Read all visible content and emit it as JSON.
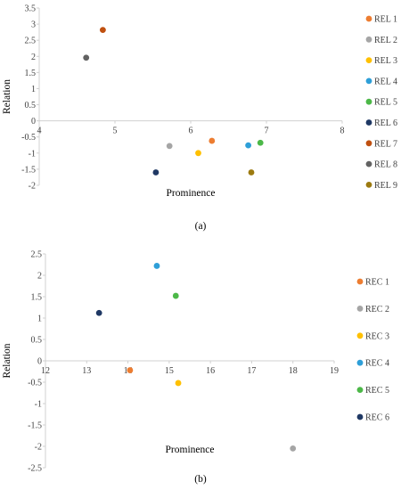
{
  "chart_data": [
    {
      "type": "scatter",
      "caption": "(a)",
      "xlabel": "Prominence",
      "ylabel": "Relation",
      "xlim": [
        4,
        8
      ],
      "ylim": [
        -2,
        3.5
      ],
      "xticks": [
        4,
        5,
        6,
        7,
        8
      ],
      "yticks": [
        -2,
        -1.5,
        -1,
        -0.5,
        0,
        0.5,
        1,
        1.5,
        2,
        2.5,
        3,
        3.5
      ],
      "xtick_labels": [
        "4",
        "5",
        "6",
        "7",
        "8"
      ],
      "ytick_labels": [
        "-2",
        "-1.5",
        "-1",
        "-0.5",
        "0",
        "0.5",
        "1",
        "1.5",
        "2",
        "2.5",
        "3",
        "3.5"
      ],
      "grid": false,
      "legend_position": "right",
      "series": [
        {
          "name": "REL 1",
          "color": "#ED7D31",
          "x": 6.28,
          "y": -0.62
        },
        {
          "name": "REL 2",
          "color": "#A5A5A5",
          "x": 5.72,
          "y": -0.78
        },
        {
          "name": "REL 3",
          "color": "#FFC000",
          "x": 6.1,
          "y": -1.0
        },
        {
          "name": "REL 4",
          "color": "#2E9FD8",
          "x": 6.76,
          "y": -0.76
        },
        {
          "name": "REL 5",
          "color": "#4CB848",
          "x": 6.92,
          "y": -0.68
        },
        {
          "name": "REL 6",
          "color": "#1F3864",
          "x": 5.54,
          "y": -1.6
        },
        {
          "name": "REL 7",
          "color": "#C05010",
          "x": 4.84,
          "y": 2.82
        },
        {
          "name": "REL 8",
          "color": "#626262",
          "x": 4.62,
          "y": 1.96
        },
        {
          "name": "REL 9",
          "color": "#9C7A10",
          "x": 6.8,
          "y": -1.6
        }
      ]
    },
    {
      "type": "scatter",
      "caption": "(b)",
      "xlabel": "Prominence",
      "ylabel": "Relation",
      "xlim": [
        12,
        19
      ],
      "ylim": [
        -2.5,
        2.5
      ],
      "xticks": [
        12,
        13,
        14,
        15,
        16,
        17,
        18,
        19
      ],
      "yticks": [
        -2.5,
        -2,
        -1.5,
        -1,
        -0.5,
        0,
        0.5,
        1,
        1.5,
        2,
        2.5
      ],
      "xtick_labels": [
        "12",
        "13",
        "14",
        "15",
        "16",
        "17",
        "18",
        "19"
      ],
      "ytick_labels": [
        "-2.5",
        "-2",
        "-1.5",
        "-1",
        "-0.5",
        "0",
        "0.5",
        "1",
        "1.5",
        "2",
        "2.5"
      ],
      "grid": false,
      "legend_position": "right",
      "series": [
        {
          "name": "REC 1",
          "color": "#ED7D31",
          "x": 14.05,
          "y": -0.22
        },
        {
          "name": "REC 2",
          "color": "#A5A5A5",
          "x": 18.0,
          "y": -2.05
        },
        {
          "name": "REC 3",
          "color": "#FFC000",
          "x": 15.22,
          "y": -0.52
        },
        {
          "name": "REC 4",
          "color": "#2E9FD8",
          "x": 14.7,
          "y": 2.22
        },
        {
          "name": "REC 5",
          "color": "#4CB848",
          "x": 15.16,
          "y": 1.52
        },
        {
          "name": "REC 6",
          "color": "#1F3864",
          "x": 13.3,
          "y": 1.12
        }
      ]
    }
  ]
}
